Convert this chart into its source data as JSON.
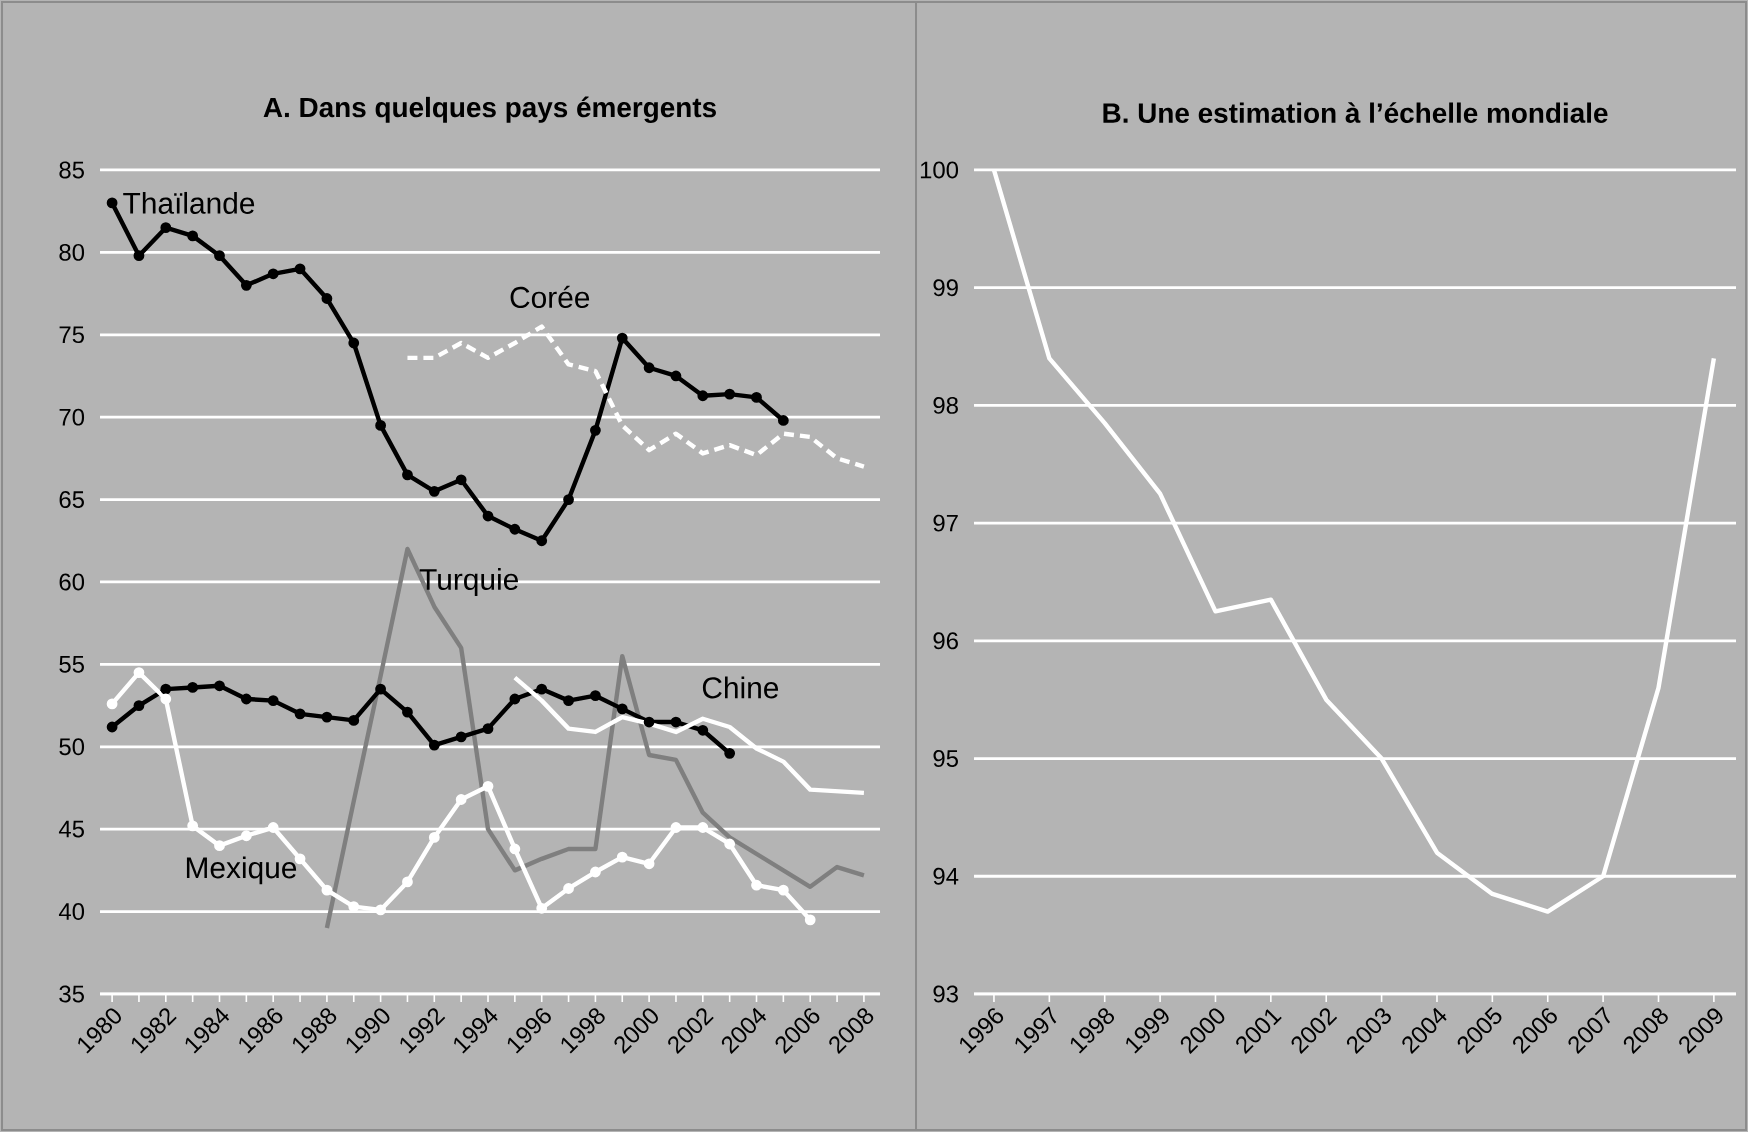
{
  "chart_data": [
    {
      "type": "line",
      "title": "A. Dans quelques pays émergents",
      "xlim": [
        1979.55,
        2008.6
      ],
      "ylim": [
        35,
        85
      ],
      "yticks": [
        35,
        40,
        45,
        50,
        55,
        60,
        65,
        70,
        75,
        80,
        85
      ],
      "xticks": [
        1980,
        {
          "value": 1981,
          "label": null
        },
        1982,
        {
          "value": 1983,
          "label": null
        },
        1984,
        {
          "value": 1985,
          "label": null
        },
        1986,
        {
          "value": 1987,
          "label": null
        },
        1988,
        {
          "value": 1989,
          "label": null
        },
        1990,
        {
          "value": 1991,
          "label": null
        },
        1992,
        {
          "value": 1993,
          "label": null
        },
        1994,
        {
          "value": 1995,
          "label": null
        },
        1996,
        {
          "value": 1997,
          "label": null
        },
        1998,
        {
          "value": 1999,
          "label": null
        },
        2000,
        {
          "value": 2001,
          "label": null
        },
        2002,
        {
          "value": 2003,
          "label": null
        },
        2004,
        {
          "value": 2005,
          "label": null
        },
        2006,
        {
          "value": 2007,
          "label": null
        },
        2008
      ],
      "grid": "y",
      "series": [
        {
          "name": "Thaïlande",
          "color": "#000000",
          "marker": "circle",
          "line_style": "solid",
          "x": [
            1980,
            1981,
            1982,
            1983,
            1984,
            1985,
            1986,
            1987,
            1988,
            1989,
            1990,
            1991,
            1992,
            1993,
            1994,
            1995,
            1996,
            1997,
            1998,
            1999,
            2000,
            2001,
            2002,
            2003,
            2004,
            2005
          ],
          "values": [
            83,
            79.8,
            81.5,
            81,
            79.8,
            78,
            78.7,
            79,
            77.2,
            74.5,
            69.5,
            66.5,
            65.5,
            66.2,
            64,
            63.2,
            62.5,
            65,
            69.2,
            74.8,
            73,
            72.5,
            71.3,
            71.4,
            71.2,
            69.8
          ]
        },
        {
          "name": "Corée",
          "color": "#ffffff",
          "marker": "none",
          "line_style": "dashed",
          "x": [
            1991,
            1992,
            1993,
            1994,
            1995,
            1996,
            1997,
            1998,
            1999,
            2000,
            2001,
            2002,
            2003,
            2004,
            2005,
            2006,
            2007,
            2008
          ],
          "values": [
            73.6,
            73.6,
            74.5,
            73.6,
            74.5,
            75.5,
            73.2,
            72.8,
            69.5,
            68,
            69,
            67.8,
            68.3,
            67.7,
            69,
            68.8,
            67.5,
            67
          ]
        },
        {
          "name": "Turquie",
          "color": "#7f7f7f",
          "marker": "none",
          "line_style": "solid",
          "x": [
            1988,
            1989,
            1990,
            1991,
            1992,
            1993,
            1994,
            1995,
            1996,
            1997,
            1998,
            1999,
            2000,
            2001,
            2002,
            2003,
            2004,
            2005,
            2006,
            2007,
            2008
          ],
          "values": [
            39,
            46.7,
            54.3,
            62,
            58.5,
            56,
            45,
            42.5,
            43.2,
            43.8,
            43.8,
            55.5,
            49.5,
            49.2,
            46,
            44.5,
            43.5,
            42.5,
            41.5,
            42.7,
            42.2
          ]
        },
        {
          "color": "#000000",
          "marker": "circle",
          "line_style": "solid",
          "x": [
            1980,
            1981,
            1982,
            1983,
            1984,
            1985,
            1986,
            1987,
            1988,
            1989,
            1990,
            1991,
            1992,
            1993,
            1994,
            1995,
            1996,
            1997,
            1998,
            1999,
            2000,
            2001,
            2002,
            2003
          ],
          "values": [
            51.2,
            52.5,
            53.5,
            53.6,
            53.7,
            52.9,
            52.8,
            52,
            51.8,
            51.6,
            53.5,
            52.1,
            50.1,
            50.6,
            51.1,
            52.9,
            53.5,
            52.8,
            53.1,
            52.3,
            51.5,
            51.5,
            51,
            49.6
          ]
        },
        {
          "name": "Chine",
          "color": "#ffffff",
          "marker": "none",
          "line_style": "solid",
          "x": [
            1995,
            1996,
            1997,
            1998,
            1999,
            2000,
            2001,
            2002,
            2003,
            2004,
            2005,
            2006,
            2007,
            2008
          ],
          "values": [
            54.2,
            52.8,
            51.1,
            50.9,
            51.8,
            51.4,
            50.9,
            51.7,
            51.2,
            49.9,
            49.1,
            47.4,
            47.3,
            47.2
          ]
        },
        {
          "name": "Mexique",
          "color": "#ffffff",
          "marker": "circle",
          "line_style": "solid",
          "x": [
            1980,
            1981,
            1982,
            1983,
            1984,
            1985,
            1986,
            1987,
            1988,
            1989,
            1990,
            1991,
            1992,
            1993,
            1994,
            1995,
            1996,
            1997,
            1998,
            1999,
            2000,
            2001,
            2002,
            2003,
            2004,
            2005,
            2006
          ],
          "values": [
            52.6,
            54.5,
            52.9,
            45.2,
            44,
            44.6,
            45.1,
            43.2,
            41.3,
            40.3,
            40.1,
            41.8,
            44.5,
            46.8,
            47.6,
            43.8,
            40.2,
            41.4,
            42.4,
            43.3,
            42.9,
            45.1,
            45.1,
            44.1,
            41.6,
            41.3,
            39.5
          ]
        }
      ]
    },
    {
      "type": "line",
      "title": "B. Une estimation à l’échelle mondiale",
      "categories": [
        "1996",
        "1997",
        "1998",
        "1999",
        "2000",
        "2001",
        "2002",
        "2003",
        "2004",
        "2005",
        "2006",
        "2007",
        "2008",
        "2009"
      ],
      "ylim": [
        93,
        100
      ],
      "yticks": [
        93,
        94,
        95,
        96,
        97,
        98,
        99,
        100
      ],
      "grid": "y",
      "marker": "none",
      "line_style": "solid",
      "series": [
        {
          "color": "#ffffff",
          "values": [
            100,
            98.4,
            97.85,
            97.25,
            96.25,
            96.35,
            95.5,
            95,
            94.2,
            93.85,
            93.7,
            94,
            95.6,
            98.4
          ]
        }
      ]
    }
  ]
}
